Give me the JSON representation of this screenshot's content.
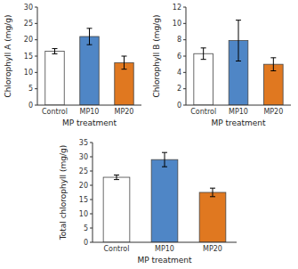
{
  "chart_data": [
    {
      "type": "bar",
      "categories": [
        "Control",
        "MP10",
        "MP20"
      ],
      "values": [
        16.5,
        21.0,
        13.0
      ],
      "errors": [
        0.8,
        2.5,
        2.0
      ],
      "colors": [
        "white",
        "#4f86c6",
        "#e07820"
      ],
      "xlabel": "MP treatment",
      "ylabel": "Chlorophyll A (mg/g)",
      "ylim": [
        0,
        30
      ],
      "yticks": [
        0,
        5,
        10,
        15,
        20,
        25,
        30
      ]
    },
    {
      "type": "bar",
      "categories": [
        "Control",
        "MP10",
        "MP20"
      ],
      "values": [
        6.3,
        7.9,
        5.0
      ],
      "errors": [
        0.7,
        2.5,
        0.8
      ],
      "colors": [
        "white",
        "#4f86c6",
        "#e07820"
      ],
      "xlabel": "MP treatment",
      "ylabel": "Chlorophyll B (mg/g)",
      "ylim": [
        0,
        12
      ],
      "yticks": [
        0,
        2,
        4,
        6,
        8,
        10,
        12
      ]
    },
    {
      "type": "bar",
      "categories": [
        "Control",
        "MP10",
        "MP20"
      ],
      "values": [
        22.8,
        29.0,
        17.5
      ],
      "errors": [
        0.8,
        2.5,
        1.5
      ],
      "colors": [
        "white",
        "#4f86c6",
        "#e07820"
      ],
      "xlabel": "MP treatment",
      "ylabel": "Total chlorophyll (mg/g)",
      "ylim": [
        0,
        35
      ],
      "yticks": [
        0,
        5,
        10,
        15,
        20,
        25,
        30,
        35
      ]
    }
  ]
}
